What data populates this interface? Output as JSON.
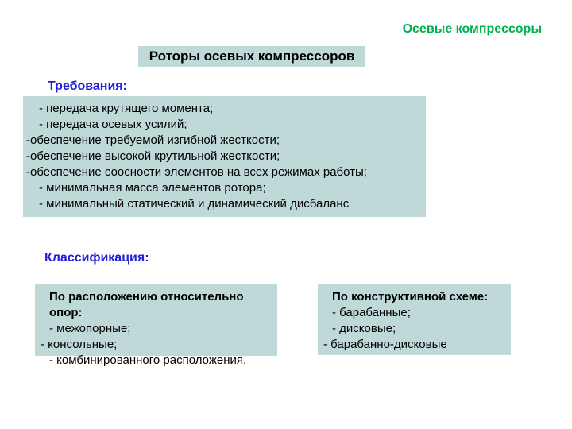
{
  "colors": {
    "background": "#ffffff",
    "box_fill": "#bed9d7",
    "header_text": "#00b050",
    "section_text": "#1f1fd6",
    "body_text": "#000000"
  },
  "fonts": {
    "header_size_pt": 16,
    "title_size_pt": 17,
    "section_size_pt": 16,
    "body_size_pt": 15,
    "family": "Arial"
  },
  "header": {
    "text": "Осевые компрессоры"
  },
  "title": {
    "text": "Роторы осевых компрессоров"
  },
  "sections": {
    "requirements_label": "Требования:",
    "classification_label": "Классификация:"
  },
  "requirements": {
    "lines": [
      " - передача крутящего момента;",
      "  - передача осевых усилий;",
      "обеспечение требуемой изгибной жесткости;",
      "обеспечение высокой крутильной жесткости;",
      "обеспечение соосности элементов на всех режимах работы;",
      " - минимальная масса элементов ротора;",
      " - минимальный статический и динамический дисбаланс"
    ],
    "line_indent": [
      "indent",
      "indent",
      "flush",
      "flush",
      "flush",
      "indent",
      "indent"
    ],
    "bullet_prefix_for_flush": "-"
  },
  "classification_left": {
    "heading": "По расположению относительно опор:",
    "items": [
      " - межопорные;",
      "- консольные;",
      " - комбинированного расположения."
    ],
    "item_indent": [
      "indent",
      "flush",
      "indent"
    ]
  },
  "classification_right": {
    "heading": "По конструктивной схеме:",
    "items": [
      "- барабанные;",
      "- дисковые;",
      "- барабанно-дисковые"
    ],
    "item_indent": [
      "indent",
      "indent",
      "flush"
    ]
  }
}
